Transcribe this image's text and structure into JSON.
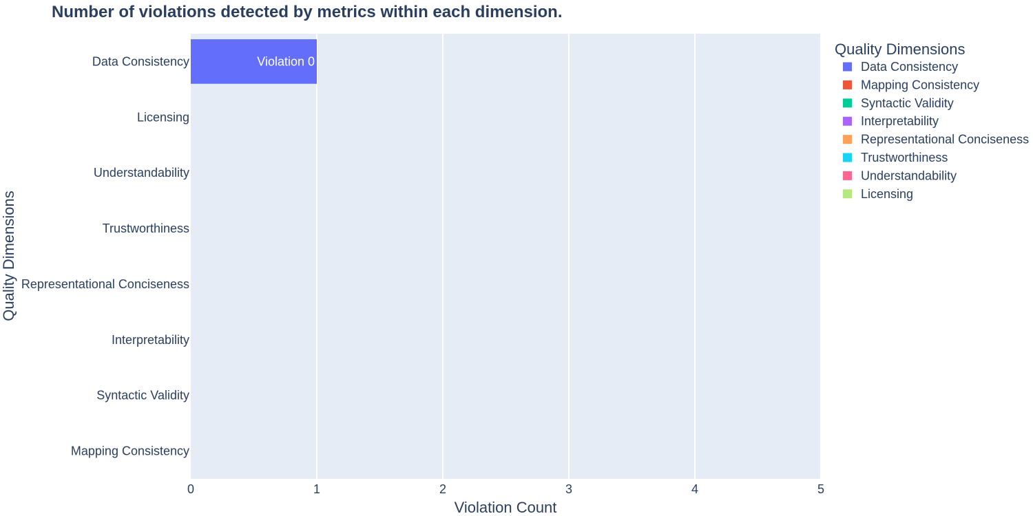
{
  "chart_data": {
    "type": "bar",
    "orientation": "horizontal",
    "title": "Number of violations detected by metrics within each dimension.",
    "xlabel": "Violation Count",
    "ylabel": "Quality Dimensions",
    "xlim": [
      0,
      5
    ],
    "x_ticks": [
      "0",
      "1",
      "2",
      "3",
      "4",
      "5"
    ],
    "categories": [
      "Data Consistency",
      "Licensing",
      "Understandability",
      "Trustworthiness",
      "Representational Conciseness",
      "Interpretability",
      "Syntactic Validity",
      "Mapping Consistency"
    ],
    "series": [
      {
        "name": "Data Consistency",
        "color": "#636efa",
        "category": "Data Consistency",
        "value": 1,
        "label": "Violation 0"
      },
      {
        "name": "Mapping Consistency",
        "color": "#ef553b",
        "category": "Mapping Consistency",
        "value": 0,
        "label": ""
      },
      {
        "name": "Syntactic Validity",
        "color": "#00cc96",
        "category": "Syntactic Validity",
        "value": 0,
        "label": ""
      },
      {
        "name": "Interpretability",
        "color": "#ab63fa",
        "category": "Interpretability",
        "value": 0,
        "label": ""
      },
      {
        "name": "Representational Conciseness",
        "color": "#ffa15a",
        "category": "Representational Conciseness",
        "value": 0,
        "label": ""
      },
      {
        "name": "Trustworthiness",
        "color": "#19d3f3",
        "category": "Trustworthiness",
        "value": 0,
        "label": ""
      },
      {
        "name": "Understandability",
        "color": "#ff6692",
        "category": "Understandability",
        "value": 0,
        "label": ""
      },
      {
        "name": "Licensing",
        "color": "#b6e880",
        "category": "Licensing",
        "value": 0,
        "label": ""
      }
    ],
    "legend_title": "Quality Dimensions",
    "legend_position": "right",
    "grid": true,
    "plot_background": "#e5ecf6"
  }
}
